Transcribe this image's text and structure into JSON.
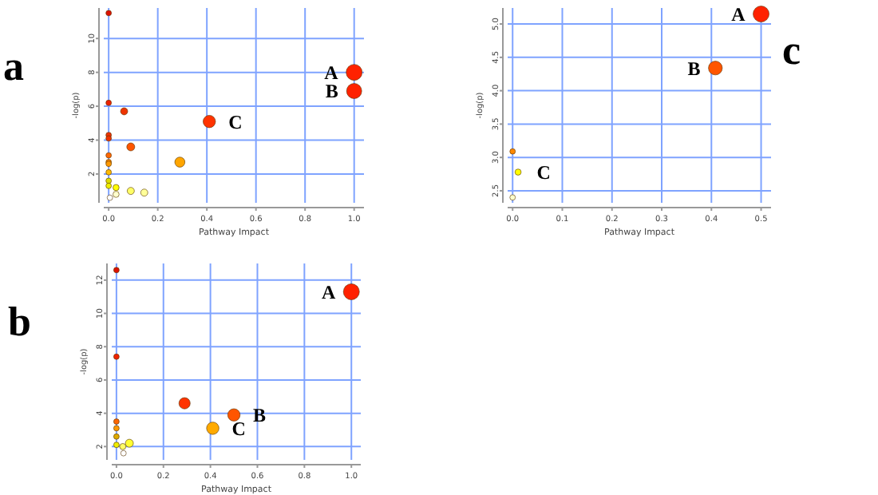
{
  "chart_data": [
    {
      "type": "bubble",
      "title": "a",
      "xlabel": "Pathway Impact",
      "ylabel": "-log(p)",
      "grid": true,
      "xlim": [
        -0.02,
        1.04
      ],
      "ylim": [
        0.3,
        11.8
      ],
      "xticks": [
        {
          "value": 0,
          "label": "0.0"
        },
        {
          "value": 0.2,
          "label": "0.2"
        },
        {
          "value": 0.4,
          "label": "0.4"
        },
        {
          "value": 0.6,
          "label": "0.6"
        },
        {
          "value": 0.8,
          "label": "0.8"
        },
        {
          "value": 1,
          "label": "1.0"
        }
      ],
      "yticks": [
        2,
        4,
        6,
        8,
        10
      ],
      "series": [
        {
          "x": [
            0,
            1,
            1,
            0,
            0.063,
            0.41,
            0,
            0,
            0.09,
            0,
            0,
            0,
            0.29,
            0,
            0,
            0,
            0.03,
            0.03,
            0.09,
            0.145,
            0.005
          ],
          "values": [
            11.5,
            8.0,
            6.9,
            6.2,
            5.7,
            5.1,
            4.3,
            4.1,
            3.6,
            3.1,
            2.7,
            2.6,
            2.7,
            2.1,
            1.6,
            1.3,
            1.2,
            0.8,
            1.0,
            0.9,
            0.6
          ],
          "sizes": [
            0.12,
            1,
            0.9,
            0.12,
            0.2,
            0.6,
            0.12,
            0.12,
            0.25,
            0.12,
            0.12,
            0.12,
            0.4,
            0.12,
            0.12,
            0.12,
            0.15,
            0.15,
            0.2,
            0.2,
            0.12
          ],
          "colors": [
            "#dd1100",
            "#ff2200",
            "#ff2200",
            "#ee2200",
            "#ee3300",
            "#ff3300",
            "#ee3300",
            "#ee3300",
            "#ff5500",
            "#ff6600",
            "#ff8800",
            "#ff9900",
            "#ffa500",
            "#ffbb00",
            "#dddd00",
            "#eeee00",
            "#ffff00",
            "#ffffcc",
            "#ffff66",
            "#ffff99",
            "#ffffff"
          ]
        }
      ],
      "annotations": [
        {
          "text": "A",
          "x": 1,
          "y": 8.0
        },
        {
          "text": "B",
          "x": 1,
          "y": 6.9
        },
        {
          "text": "C",
          "x": 0.41,
          "y": 5.1
        }
      ]
    },
    {
      "type": "bubble",
      "title": "b",
      "xlabel": "Pathway Impact",
      "ylabel": "-log(p)",
      "grid": true,
      "xlim": [
        -0.02,
        1.04
      ],
      "ylim": [
        1.2,
        13
      ],
      "xticks": [
        {
          "value": 0,
          "label": "0.0"
        },
        {
          "value": 0.2,
          "label": "0.2"
        },
        {
          "value": 0.4,
          "label": "0.4"
        },
        {
          "value": 0.6,
          "label": "0.6"
        },
        {
          "value": 0.8,
          "label": "0.8"
        },
        {
          "value": 1,
          "label": "1.0"
        }
      ],
      "yticks": [
        2,
        4,
        6,
        8,
        10,
        12
      ],
      "series": [
        {
          "x": [
            0,
            1,
            0,
            0.29,
            0.5,
            0.41,
            0,
            0,
            0,
            0.055,
            0,
            0.027,
            0.03
          ],
          "values": [
            12.6,
            11.3,
            7.4,
            4.6,
            3.9,
            3.1,
            3.5,
            3.1,
            2.6,
            2.2,
            2.1,
            2.0,
            1.6
          ],
          "sizes": [
            0.12,
            1,
            0.12,
            0.5,
            0.6,
            0.6,
            0.12,
            0.12,
            0.12,
            0.25,
            0.12,
            0.15,
            0.12
          ],
          "colors": [
            "#dd1100",
            "#ff2200",
            "#ee2200",
            "#ff3300",
            "#ff5500",
            "#ffaa00",
            "#ff6600",
            "#ff9900",
            "#ddaa00",
            "#ffff33",
            "#eeee00",
            "#ffff66",
            "#ffffff"
          ]
        }
      ],
      "annotations": [
        {
          "text": "A",
          "x": 1,
          "y": 11.3
        },
        {
          "text": "B",
          "x": 0.5,
          "y": 3.9
        },
        {
          "text": "C",
          "x": 0.41,
          "y": 3.1
        }
      ]
    },
    {
      "type": "bubble",
      "title": "c",
      "xlabel": "Pathway Impact",
      "ylabel": "-log(p)",
      "grid": true,
      "xlim": [
        -0.01,
        0.52
      ],
      "ylim": [
        2.32,
        5.24
      ],
      "xticks": [
        {
          "value": 0,
          "label": "0.0"
        },
        0.1,
        0.2,
        0.3,
        0.4,
        0.5
      ],
      "yticks": [
        {
          "value": 2.5,
          "label": "2.5"
        },
        {
          "value": 3,
          "label": "3.0"
        },
        3.5,
        {
          "value": 4,
          "label": "4.0"
        },
        4.5,
        {
          "value": 5,
          "label": "5.0"
        }
      ],
      "series": [
        {
          "x": [
            0.5,
            0.408,
            0,
            0.011,
            0
          ],
          "values": [
            5.15,
            4.34,
            3.09,
            2.78,
            2.4
          ],
          "sizes": [
            1,
            0.75,
            0.12,
            0.15,
            0.12
          ],
          "colors": [
            "#ff2200",
            "#ff5500",
            "#ff8800",
            "#ffff00",
            "#ffffcc"
          ]
        }
      ],
      "annotations": [
        {
          "text": "A",
          "x": 0.5,
          "y": 5.15
        },
        {
          "text": "B",
          "x": 0.41,
          "y": 4.34
        },
        {
          "text": "C",
          "x": 0.01,
          "y": 2.78
        }
      ]
    }
  ]
}
